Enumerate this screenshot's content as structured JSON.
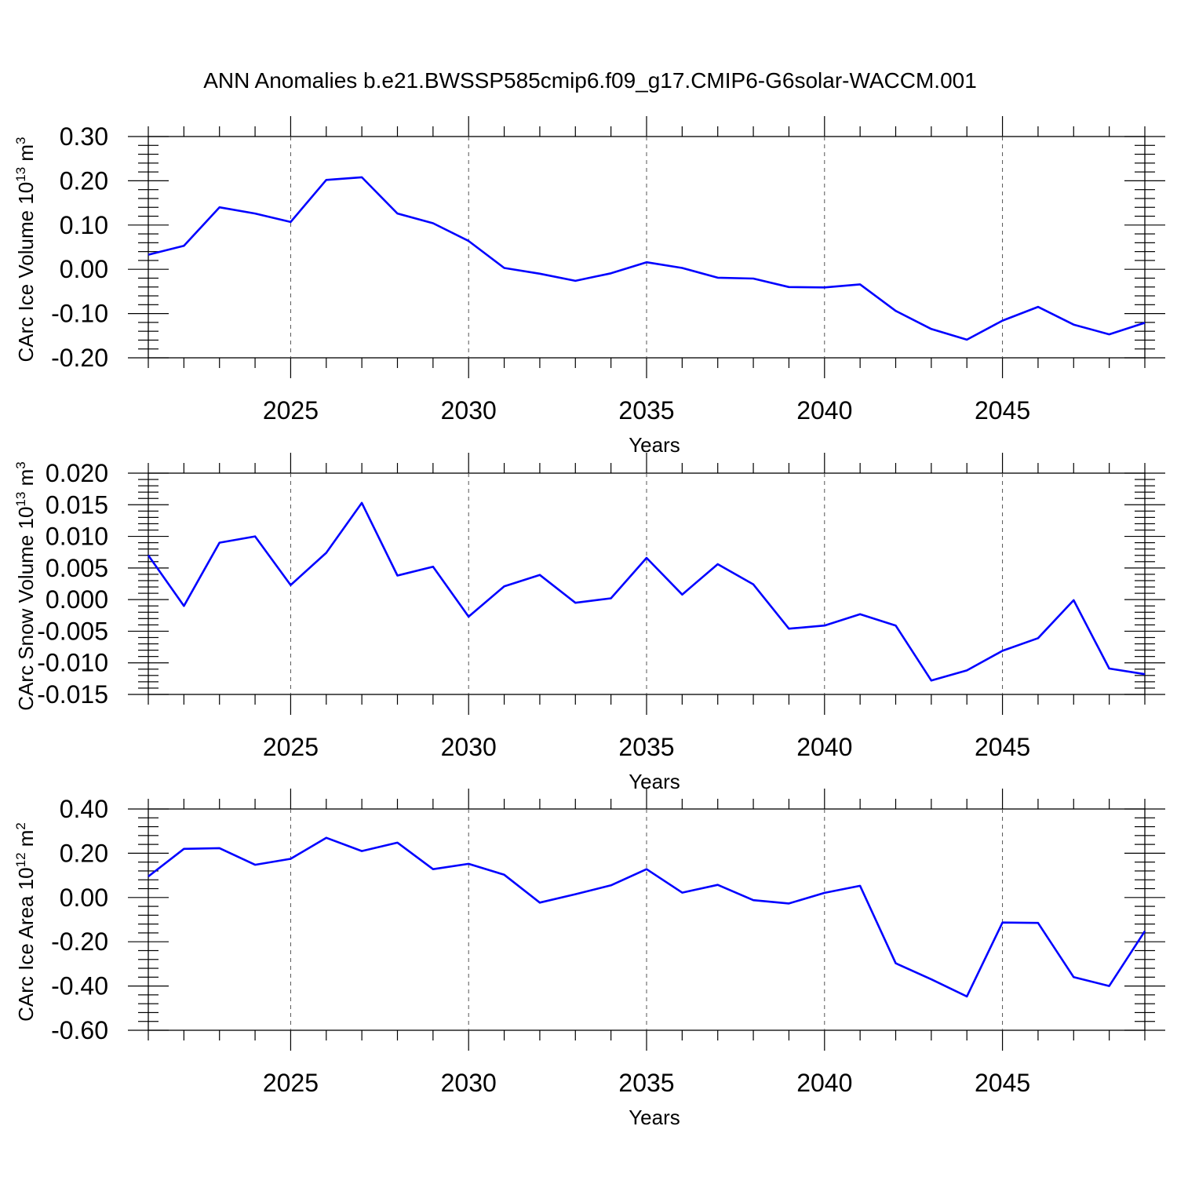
{
  "title": "ANN Anomalies b.e21.BWSSP585cmip6.f09_g17.CMIP6-G6solar-WACCM.001",
  "line_color": "#0000ff",
  "chart_data": [
    {
      "type": "line",
      "xlabel": "Years",
      "ylabel_main": "CArc Ice Volume 10",
      "ylabel_exp": "13",
      "ylabel_unit": " m",
      "ylabel_unit_exp": "3",
      "xlim": [
        2021,
        2049
      ],
      "ylim": [
        -0.2,
        0.3
      ],
      "xticks": [
        2025,
        2030,
        2035,
        2040,
        2045
      ],
      "xtick_labels": [
        "2025",
        "2030",
        "2035",
        "2040",
        "2045"
      ],
      "yticks": [
        0.3,
        0.2,
        0.1,
        0.0,
        -0.1,
        -0.2
      ],
      "ytick_labels": [
        "0.30",
        "0.20",
        "0.10",
        "0.00",
        "-0.10",
        "-0.20"
      ],
      "x": [
        2021,
        2022,
        2023,
        2024,
        2025,
        2026,
        2027,
        2028,
        2029,
        2030,
        2031,
        2032,
        2033,
        2034,
        2035,
        2036,
        2037,
        2038,
        2039,
        2040,
        2041,
        2042,
        2043,
        2044,
        2045,
        2046,
        2047,
        2048,
        2049
      ],
      "y": [
        0.033,
        0.053,
        0.14,
        0.126,
        0.107,
        0.202,
        0.208,
        0.126,
        0.104,
        0.064,
        0.003,
        -0.01,
        -0.026,
        -0.009,
        0.016,
        0.003,
        -0.019,
        -0.021,
        -0.04,
        -0.041,
        -0.034,
        -0.094,
        -0.135,
        -0.159,
        -0.116,
        -0.085,
        -0.125,
        -0.147,
        -0.121
      ]
    },
    {
      "type": "line",
      "xlabel": "Years",
      "ylabel_main": "CArc Snow Volume 10",
      "ylabel_exp": "13",
      "ylabel_unit": " m",
      "ylabel_unit_exp": "3",
      "xlim": [
        2021,
        2049
      ],
      "ylim": [
        -0.015,
        0.02
      ],
      "xticks": [
        2025,
        2030,
        2035,
        2040,
        2045
      ],
      "xtick_labels": [
        "2025",
        "2030",
        "2035",
        "2040",
        "2045"
      ],
      "yticks": [
        0.02,
        0.015,
        0.01,
        0.005,
        0.0,
        -0.005,
        -0.01,
        -0.015
      ],
      "ytick_labels": [
        "0.020",
        "0.015",
        "0.010",
        "0.005",
        "0.000",
        "-0.005",
        "-0.010",
        "-0.015"
      ],
      "x": [
        2021,
        2022,
        2023,
        2024,
        2025,
        2026,
        2027,
        2028,
        2029,
        2030,
        2031,
        2032,
        2033,
        2034,
        2035,
        2036,
        2037,
        2038,
        2039,
        2040,
        2041,
        2042,
        2043,
        2044,
        2045,
        2046,
        2047,
        2048,
        2049
      ],
      "y": [
        0.007,
        -0.001,
        0.009,
        0.01,
        0.0023,
        0.0074,
        0.0153,
        0.0038,
        0.0052,
        -0.0027,
        0.0021,
        0.0039,
        -0.0005,
        0.0002,
        0.0066,
        0.0008,
        0.0056,
        0.0024,
        -0.0046,
        -0.0041,
        -0.0023,
        -0.0041,
        -0.0128,
        -0.0112,
        -0.0081,
        -0.0061,
        -0.0001,
        -0.0109,
        -0.0118
      ]
    },
    {
      "type": "line",
      "xlabel": "Years",
      "ylabel_main": "CArc Ice Area 10",
      "ylabel_exp": "12",
      "ylabel_unit": " m",
      "ylabel_unit_exp": "2",
      "xlim": [
        2021,
        2049
      ],
      "ylim": [
        -0.6,
        0.4
      ],
      "xticks": [
        2025,
        2030,
        2035,
        2040,
        2045
      ],
      "xtick_labels": [
        "2025",
        "2030",
        "2035",
        "2040",
        "2045"
      ],
      "yticks": [
        0.4,
        0.2,
        0.0,
        -0.2,
        -0.4,
        -0.6
      ],
      "ytick_labels": [
        "0.40",
        "0.20",
        "0.00",
        "-0.20",
        "-0.40",
        "-0.60"
      ],
      "x": [
        2021,
        2022,
        2023,
        2024,
        2025,
        2026,
        2027,
        2028,
        2029,
        2030,
        2031,
        2032,
        2033,
        2034,
        2035,
        2036,
        2037,
        2038,
        2039,
        2040,
        2041,
        2042,
        2043,
        2044,
        2045,
        2046,
        2047,
        2048,
        2049
      ],
      "y": [
        0.095,
        0.22,
        0.223,
        0.148,
        0.175,
        0.27,
        0.21,
        0.248,
        0.128,
        0.152,
        0.103,
        -0.023,
        0.015,
        0.055,
        0.128,
        0.022,
        0.057,
        -0.012,
        -0.027,
        0.021,
        0.053,
        -0.297,
        -0.37,
        -0.447,
        -0.113,
        -0.115,
        -0.36,
        -0.4,
        -0.152
      ]
    }
  ]
}
